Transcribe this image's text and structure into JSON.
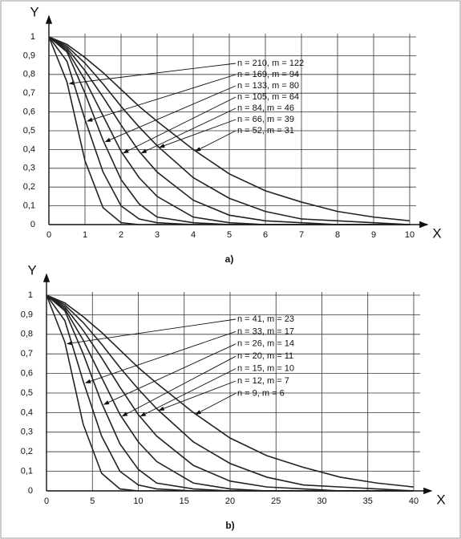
{
  "chart_data": [
    {
      "type": "line",
      "caption": "a)",
      "x_label": "X",
      "y_label": "Y",
      "grid": true,
      "color": "#222222",
      "x": [
        0,
        0.5,
        1,
        1.5,
        2,
        2.5,
        3,
        4,
        5,
        6,
        7,
        8,
        9,
        10
      ],
      "xlim": [
        0,
        10
      ],
      "xticks": [
        0,
        1,
        2,
        3,
        4,
        5,
        6,
        7,
        8,
        9,
        10
      ],
      "ylim": [
        0,
        1
      ],
      "yticks": [
        0,
        {
          "value": 0.1,
          "label": "0,1"
        },
        {
          "value": 0.2,
          "label": "0,2"
        },
        {
          "value": 0.3,
          "label": "0,3"
        },
        {
          "value": 0.4,
          "label": "0,4"
        },
        {
          "value": 0.5,
          "label": "0,5"
        },
        {
          "value": 0.6,
          "label": "0,6"
        },
        {
          "value": 0.7,
          "label": "0,7"
        },
        {
          "value": 0.8,
          "label": "0,8"
        },
        {
          "value": 0.9,
          "label": "0,9"
        },
        1
      ],
      "series": [
        {
          "name": "n = 210, m = 122",
          "values": [
            1,
            0.76,
            0.34,
            0.09,
            0.01,
            0,
            0,
            0,
            0,
            0,
            0,
            0,
            0,
            0
          ]
        },
        {
          "name": "n = 169, m = 94",
          "values": [
            1,
            0.87,
            0.56,
            0.28,
            0.1,
            0.03,
            0.01,
            0,
            0,
            0,
            0,
            0,
            0,
            0
          ]
        },
        {
          "name": "n = 133, m = 80",
          "values": [
            1,
            0.92,
            0.7,
            0.45,
            0.24,
            0.11,
            0.04,
            0.01,
            0,
            0,
            0,
            0,
            0,
            0
          ]
        },
        {
          "name": "n = 105, m = 64",
          "values": [
            1,
            0.93,
            0.77,
            0.58,
            0.39,
            0.25,
            0.15,
            0.04,
            0.01,
            0,
            0,
            0,
            0,
            0
          ]
        },
        {
          "name": "n = 84, m = 46",
          "values": [
            1,
            0.94,
            0.82,
            0.68,
            0.53,
            0.39,
            0.28,
            0.13,
            0.05,
            0.02,
            0.01,
            0,
            0,
            0
          ]
        },
        {
          "name": "n = 66, m = 39",
          "values": [
            1,
            0.95,
            0.86,
            0.75,
            0.63,
            0.52,
            0.42,
            0.25,
            0.14,
            0.07,
            0.03,
            0.02,
            0.01,
            0
          ]
        },
        {
          "name": "n = 52, m = 31",
          "values": [
            1,
            0.96,
            0.89,
            0.81,
            0.72,
            0.63,
            0.55,
            0.4,
            0.27,
            0.18,
            0.12,
            0.07,
            0.04,
            0.02
          ]
        }
      ]
    },
    {
      "type": "line",
      "caption": "b)",
      "x_label": "X",
      "y_label": "Y",
      "grid": true,
      "color": "#222222",
      "x": [
        0,
        2,
        4,
        6,
        8,
        10,
        12,
        16,
        20,
        24,
        28,
        32,
        36,
        40
      ],
      "xlim": [
        0,
        40
      ],
      "xticks": [
        0,
        5,
        10,
        15,
        20,
        25,
        30,
        35,
        40
      ],
      "ylim": [
        0,
        1
      ],
      "yticks": [
        0,
        {
          "value": 0.1,
          "label": "0,1"
        },
        {
          "value": 0.2,
          "label": "0,2"
        },
        {
          "value": 0.3,
          "label": "0,3"
        },
        {
          "value": 0.4,
          "label": "0,4"
        },
        {
          "value": 0.5,
          "label": "0,5"
        },
        {
          "value": 0.6,
          "label": "0,6"
        },
        {
          "value": 0.7,
          "label": "0,7"
        },
        {
          "value": 0.8,
          "label": "0,8"
        },
        {
          "value": 0.9,
          "label": "0,9"
        },
        1
      ],
      "series": [
        {
          "name": "n = 41, m = 23",
          "values": [
            1,
            0.76,
            0.34,
            0.09,
            0.01,
            0,
            0,
            0,
            0,
            0,
            0,
            0,
            0,
            0
          ]
        },
        {
          "name": "n = 33, m = 17",
          "values": [
            1,
            0.87,
            0.56,
            0.28,
            0.1,
            0.03,
            0.01,
            0,
            0,
            0,
            0,
            0,
            0,
            0
          ]
        },
        {
          "name": "n = 26, m = 14",
          "values": [
            1,
            0.92,
            0.7,
            0.45,
            0.24,
            0.11,
            0.04,
            0.01,
            0,
            0,
            0,
            0,
            0,
            0
          ]
        },
        {
          "name": "n = 20, m = 11",
          "values": [
            1,
            0.93,
            0.77,
            0.58,
            0.39,
            0.25,
            0.15,
            0.04,
            0.01,
            0,
            0,
            0,
            0,
            0
          ]
        },
        {
          "name": "n = 15, m = 10",
          "values": [
            1,
            0.94,
            0.82,
            0.68,
            0.53,
            0.39,
            0.28,
            0.13,
            0.05,
            0.02,
            0.01,
            0,
            0,
            0
          ]
        },
        {
          "name": "n = 12, m = 7",
          "values": [
            1,
            0.95,
            0.86,
            0.75,
            0.63,
            0.52,
            0.42,
            0.25,
            0.14,
            0.07,
            0.03,
            0.02,
            0.01,
            0
          ]
        },
        {
          "name": "n = 9, m = 6",
          "values": [
            1,
            0.96,
            0.89,
            0.81,
            0.72,
            0.63,
            0.55,
            0.4,
            0.27,
            0.18,
            0.12,
            0.07,
            0.04,
            0.02
          ]
        }
      ]
    }
  ]
}
